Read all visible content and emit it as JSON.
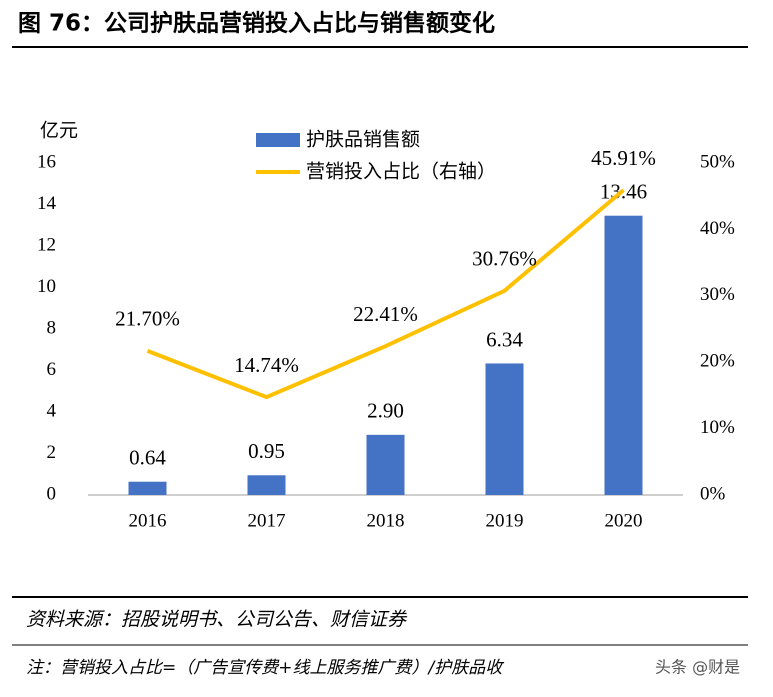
{
  "header": {
    "title": "图 76：公司护肤品营销投入占比与销售额变化"
  },
  "chart_data": {
    "type": "bar-line",
    "y_label": "亿元",
    "categories": [
      "2016",
      "2017",
      "2018",
      "2019",
      "2020"
    ],
    "series": [
      {
        "name": "护肤品销售额",
        "type": "bar",
        "color": "#4472c4",
        "values": [
          0.64,
          0.95,
          2.9,
          6.34,
          13.46
        ],
        "value_labels": [
          "0.64",
          "0.95",
          "2.90",
          "6.34",
          "13.46"
        ]
      },
      {
        "name": "营销投入占比（右轴）",
        "type": "line",
        "axis": "y2",
        "color": "#ffc000",
        "values": [
          21.7,
          14.74,
          22.41,
          30.76,
          45.91
        ],
        "value_labels": [
          "21.70%",
          "14.74%",
          "22.41%",
          "30.76%",
          "45.91%"
        ]
      }
    ],
    "ylim": [
      0,
      16
    ],
    "yticks": [
      0,
      2,
      4,
      6,
      8,
      10,
      12,
      14,
      16
    ],
    "y2lim": [
      0,
      50
    ],
    "y2ticks": [
      {
        "value": 0,
        "label": "0%"
      },
      {
        "value": 10,
        "label": "10%"
      },
      {
        "value": 20,
        "label": "20%"
      },
      {
        "value": 30,
        "label": "30%"
      },
      {
        "value": 40,
        "label": "40%"
      },
      {
        "value": 50,
        "label": "50%"
      }
    ],
    "grid": false
  },
  "footer": {
    "source": "资料来源：招股说明书、公司公告、财信证券",
    "note": "注：营销投入占比=（广告宣传费+线上服务推广费）/护肤品收",
    "watermark": "头条 @财是"
  }
}
